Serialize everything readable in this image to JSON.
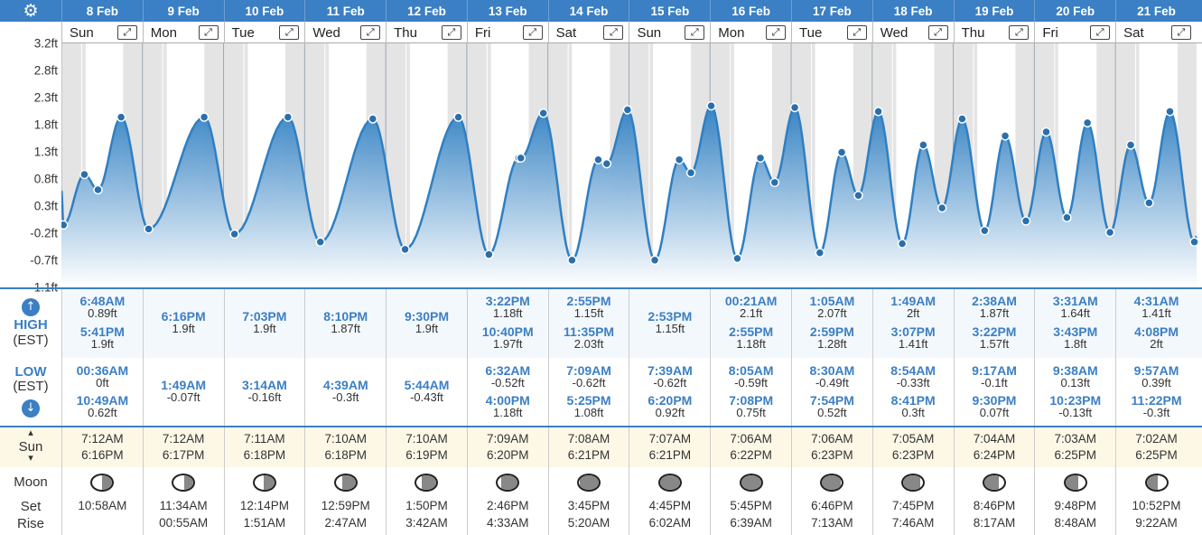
{
  "settings_icon": "gear-icon",
  "days": [
    {
      "date": "8 Feb",
      "day": "Sun",
      "high": [
        {
          "time": "6:48AM",
          "ht": "0.89ft"
        },
        {
          "time": "5:41PM",
          "ht": "1.9ft"
        }
      ],
      "low": [
        {
          "time": "00:36AM",
          "ht": "0ft"
        },
        {
          "time": "10:49AM",
          "ht": "0.62ft"
        }
      ],
      "sunrise": "7:12AM",
      "sunset": "6:16PM",
      "moonset": "10:58AM",
      "moonrise": "",
      "moon_shade": 0.5
    },
    {
      "date": "9 Feb",
      "day": "Mon",
      "high": [
        {
          "time": "6:16PM",
          "ht": "1.9ft"
        }
      ],
      "low": [
        {
          "time": "1:49AM",
          "ht": "-0.07ft"
        }
      ],
      "sunrise": "7:12AM",
      "sunset": "6:17PM",
      "moonset": "11:34AM",
      "moonrise": "00:55AM",
      "moon_shade": 0.45
    },
    {
      "date": "10 Feb",
      "day": "Tue",
      "high": [
        {
          "time": "7:03PM",
          "ht": "1.9ft"
        }
      ],
      "low": [
        {
          "time": "3:14AM",
          "ht": "-0.16ft"
        }
      ],
      "sunrise": "7:11AM",
      "sunset": "6:18PM",
      "moonset": "12:14PM",
      "moonrise": "1:51AM",
      "moon_shade": 0.55
    },
    {
      "date": "11 Feb",
      "day": "Wed",
      "high": [
        {
          "time": "8:10PM",
          "ht": "1.87ft"
        }
      ],
      "low": [
        {
          "time": "4:39AM",
          "ht": "-0.3ft"
        }
      ],
      "sunrise": "7:10AM",
      "sunset": "6:18PM",
      "moonset": "12:59PM",
      "moonrise": "2:47AM",
      "moon_shade": 0.65
    },
    {
      "date": "12 Feb",
      "day": "Thu",
      "high": [
        {
          "time": "9:30PM",
          "ht": "1.9ft"
        }
      ],
      "low": [
        {
          "time": "5:44AM",
          "ht": "-0.43ft"
        }
      ],
      "sunrise": "7:10AM",
      "sunset": "6:19PM",
      "moonset": "1:50PM",
      "moonrise": "3:42AM",
      "moon_shade": 0.75
    },
    {
      "date": "13 Feb",
      "day": "Fri",
      "high": [
        {
          "time": "3:22PM",
          "ht": "1.18ft"
        },
        {
          "time": "10:40PM",
          "ht": "1.97ft"
        }
      ],
      "low": [
        {
          "time": "6:32AM",
          "ht": "-0.52ft"
        },
        {
          "time": "4:00PM",
          "ht": "1.18ft"
        }
      ],
      "sunrise": "7:09AM",
      "sunset": "6:20PM",
      "moonset": "2:46PM",
      "moonrise": "4:33AM",
      "moon_shade": 0.85
    },
    {
      "date": "14 Feb",
      "day": "Sat",
      "high": [
        {
          "time": "2:55PM",
          "ht": "1.15ft"
        },
        {
          "time": "11:35PM",
          "ht": "2.03ft"
        }
      ],
      "low": [
        {
          "time": "7:09AM",
          "ht": "-0.62ft"
        },
        {
          "time": "5:25PM",
          "ht": "1.08ft"
        }
      ],
      "sunrise": "7:08AM",
      "sunset": "6:21PM",
      "moonset": "3:45PM",
      "moonrise": "5:20AM",
      "moon_shade": 0.95
    },
    {
      "date": "15 Feb",
      "day": "Sun",
      "high": [
        {
          "time": "2:53PM",
          "ht": "1.15ft"
        }
      ],
      "low": [
        {
          "time": "7:39AM",
          "ht": "-0.62ft"
        },
        {
          "time": "6:20PM",
          "ht": "0.92ft"
        }
      ],
      "sunrise": "7:07AM",
      "sunset": "6:21PM",
      "moonset": "4:45PM",
      "moonrise": "6:02AM",
      "moon_shade": 1.0
    },
    {
      "date": "16 Feb",
      "day": "Mon",
      "high": [
        {
          "time": "00:21AM",
          "ht": "2.1ft"
        },
        {
          "time": "2:55PM",
          "ht": "1.18ft"
        }
      ],
      "low": [
        {
          "time": "8:05AM",
          "ht": "-0.59ft"
        },
        {
          "time": "7:08PM",
          "ht": "0.75ft"
        }
      ],
      "sunrise": "7:06AM",
      "sunset": "6:22PM",
      "moonset": "5:45PM",
      "moonrise": "6:39AM",
      "moon_shade": 1.0
    },
    {
      "date": "17 Feb",
      "day": "Tue",
      "high": [
        {
          "time": "1:05AM",
          "ht": "2.07ft"
        },
        {
          "time": "2:59PM",
          "ht": "1.28ft"
        }
      ],
      "low": [
        {
          "time": "8:30AM",
          "ht": "-0.49ft"
        },
        {
          "time": "7:54PM",
          "ht": "0.52ft"
        }
      ],
      "sunrise": "7:06AM",
      "sunset": "6:23PM",
      "moonset": "6:46PM",
      "moonrise": "7:13AM",
      "moon_shade": 0.95
    },
    {
      "date": "18 Feb",
      "day": "Wed",
      "high": [
        {
          "time": "1:49AM",
          "ht": "2ft"
        },
        {
          "time": "3:07PM",
          "ht": "1.41ft"
        }
      ],
      "low": [
        {
          "time": "8:54AM",
          "ht": "-0.33ft"
        },
        {
          "time": "8:41PM",
          "ht": "0.3ft"
        }
      ],
      "sunrise": "7:05AM",
      "sunset": "6:23PM",
      "moonset": "7:45PM",
      "moonrise": "7:46AM",
      "moon_shade": 0.85
    },
    {
      "date": "19 Feb",
      "day": "Thu",
      "high": [
        {
          "time": "2:38AM",
          "ht": "1.87ft"
        },
        {
          "time": "3:22PM",
          "ht": "1.57ft"
        }
      ],
      "low": [
        {
          "time": "9:17AM",
          "ht": "-0.1ft"
        },
        {
          "time": "9:30PM",
          "ht": "0.07ft"
        }
      ],
      "sunrise": "7:04AM",
      "sunset": "6:24PM",
      "moonset": "8:46PM",
      "moonrise": "8:17AM",
      "moon_shade": 0.75
    },
    {
      "date": "20 Feb",
      "day": "Fri",
      "high": [
        {
          "time": "3:31AM",
          "ht": "1.64ft"
        },
        {
          "time": "3:43PM",
          "ht": "1.8ft"
        }
      ],
      "low": [
        {
          "time": "9:38AM",
          "ht": "0.13ft"
        },
        {
          "time": "10:23PM",
          "ht": "-0.13ft"
        }
      ],
      "sunrise": "7:03AM",
      "sunset": "6:25PM",
      "moonset": "9:48PM",
      "moonrise": "8:48AM",
      "moon_shade": 0.65
    },
    {
      "date": "21 Feb",
      "day": "Sat",
      "high": [
        {
          "time": "4:31AM",
          "ht": "1.41ft"
        },
        {
          "time": "4:08PM",
          "ht": "2ft"
        }
      ],
      "low": [
        {
          "time": "9:57AM",
          "ht": "0.39ft"
        },
        {
          "time": "11:22PM",
          "ht": "-0.3ft"
        }
      ],
      "sunrise": "7:02AM",
      "sunset": "6:25PM",
      "moonset": "10:52PM",
      "moonrise": "9:22AM",
      "moon_shade": 0.55
    }
  ],
  "expand_icon": "expand-arrows-icon",
  "labels": {
    "high": "HIGH",
    "high_tz": "(EST)",
    "low": "LOW",
    "low_tz": "(EST)",
    "sun": "Sun",
    "moon": "Moon",
    "set": "Set",
    "rise": "Rise",
    "up_arrow": "↑",
    "down_arrow": "↓",
    "sun_up": "▴",
    "sun_down": "▾",
    "expand": "⤢",
    "gear": "⚙"
  },
  "chart_data": {
    "type": "area",
    "yticks": [
      "3.2ft",
      "2.8ft",
      "2.3ft",
      "1.8ft",
      "1.3ft",
      "0.8ft",
      "0.3ft",
      "-0.2ft",
      "-0.7ft",
      "-1.1ft"
    ],
    "ylim": [
      -1.1,
      3.2
    ],
    "colors": {
      "line": "#2f7fc2",
      "fill_top": "#2f7fc2",
      "fill_bottom": "#ffffff",
      "night": "#e4e4e4",
      "grid": "#d7d7d7"
    },
    "series": [
      {
        "points": [
          [
            "8 Feb 00:00",
            0.6
          ],
          [
            "8 Feb 00:36",
            0.0
          ],
          [
            "8 Feb 06:48",
            0.89
          ],
          [
            "8 Feb 10:49",
            0.62
          ],
          [
            "8 Feb 17:41",
            1.9
          ],
          [
            "9 Feb 01:49",
            -0.07
          ],
          [
            "9 Feb 18:16",
            1.9
          ],
          [
            "10 Feb 03:14",
            -0.16
          ],
          [
            "10 Feb 19:03",
            1.9
          ],
          [
            "11 Feb 04:39",
            -0.3
          ],
          [
            "11 Feb 20:10",
            1.87
          ],
          [
            "12 Feb 05:44",
            -0.43
          ],
          [
            "12 Feb 21:30",
            1.9
          ],
          [
            "13 Feb 06:32",
            -0.52
          ],
          [
            "13 Feb 15:22",
            1.18
          ],
          [
            "13 Feb 16:00",
            1.18
          ],
          [
            "13 Feb 22:40",
            1.97
          ],
          [
            "14 Feb 07:09",
            -0.62
          ],
          [
            "14 Feb 14:55",
            1.15
          ],
          [
            "14 Feb 17:25",
            1.08
          ],
          [
            "14 Feb 23:35",
            2.03
          ],
          [
            "15 Feb 07:39",
            -0.62
          ],
          [
            "15 Feb 14:53",
            1.15
          ],
          [
            "15 Feb 18:20",
            0.92
          ],
          [
            "16 Feb 00:21",
            2.1
          ],
          [
            "16 Feb 08:05",
            -0.59
          ],
          [
            "16 Feb 14:55",
            1.18
          ],
          [
            "16 Feb 19:08",
            0.75
          ],
          [
            "17 Feb 01:05",
            2.07
          ],
          [
            "17 Feb 08:30",
            -0.49
          ],
          [
            "17 Feb 14:59",
            1.28
          ],
          [
            "17 Feb 19:54",
            0.52
          ],
          [
            "18 Feb 01:49",
            2.0
          ],
          [
            "18 Feb 08:54",
            -0.33
          ],
          [
            "18 Feb 15:07",
            1.41
          ],
          [
            "18 Feb 20:41",
            0.3
          ],
          [
            "19 Feb 02:38",
            1.87
          ],
          [
            "19 Feb 09:17",
            -0.1
          ],
          [
            "19 Feb 15:22",
            1.57
          ],
          [
            "19 Feb 21:30",
            0.07
          ],
          [
            "20 Feb 03:31",
            1.64
          ],
          [
            "20 Feb 09:38",
            0.13
          ],
          [
            "20 Feb 15:43",
            1.8
          ],
          [
            "20 Feb 22:23",
            -0.13
          ],
          [
            "21 Feb 04:31",
            1.41
          ],
          [
            "21 Feb 09:57",
            0.39
          ],
          [
            "21 Feb 16:08",
            2.0
          ],
          [
            "21 Feb 23:22",
            -0.3
          ],
          [
            "22 Feb 00:00",
            -0.2
          ]
        ]
      }
    ]
  }
}
